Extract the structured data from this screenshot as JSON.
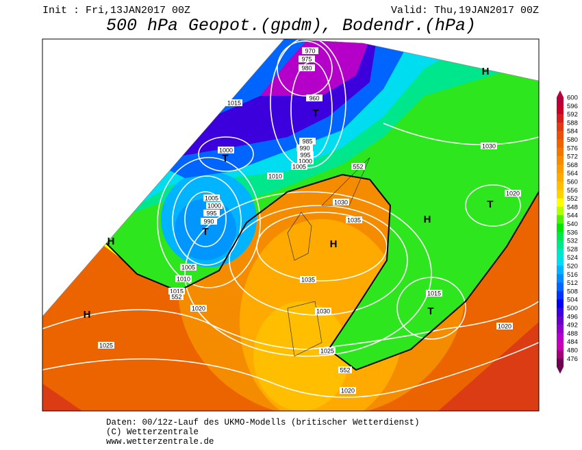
{
  "header": {
    "init": "Init : Fri,13JAN2017 00Z",
    "valid": "Valid: Thu,19JAN2017 00Z",
    "title": "500 hPa Geopot.(gpdm), Bodendr.(hPa)"
  },
  "legend": {
    "levels": [
      600,
      596,
      592,
      588,
      584,
      580,
      576,
      572,
      568,
      564,
      560,
      556,
      552,
      548,
      544,
      540,
      536,
      532,
      528,
      524,
      520,
      516,
      512,
      508,
      504,
      500,
      496,
      492,
      488,
      484,
      480,
      476
    ],
    "colors": [
      "#b4003c",
      "#c80028",
      "#d21e1e",
      "#dc3c14",
      "#e6500a",
      "#eb6400",
      "#f07800",
      "#f58c00",
      "#fa9b00",
      "#ffaa00",
      "#ffbe00",
      "#ffd200",
      "#ffff00",
      "#b4ff00",
      "#50f000",
      "#00e600",
      "#00e650",
      "#00e68c",
      "#00e6c8",
      "#00dcf0",
      "#00b4ff",
      "#008cff",
      "#0064ff",
      "#0032ff",
      "#0000f0",
      "#3c00dc",
      "#6400c8",
      "#8c00c8",
      "#b400c8",
      "#c800b4",
      "#a00078",
      "#6e0050"
    ]
  },
  "map": {
    "pressure_labels": [
      970,
      975,
      980,
      960,
      1015,
      985,
      990,
      995,
      1000,
      1005,
      1010,
      1000,
      1005,
      1000,
      995,
      990,
      1030,
      1035,
      1035,
      1030,
      1005,
      1010,
      1015,
      1020,
      1025,
      1025,
      1020,
      1030,
      1020,
      1015,
      1020
    ],
    "geopot_labels": [
      552,
      552,
      552
    ],
    "centers": [
      "T",
      "T",
      "T",
      "H",
      "H",
      "H",
      "T",
      "H",
      "H",
      "T"
    ]
  },
  "footer": {
    "lines": [
      "Daten: 00/12z-Lauf des UKMO-Modells (britischer Wetterdienst)",
      "(C) Wetterzentrale",
      "www.wetterzentrale.de"
    ]
  }
}
